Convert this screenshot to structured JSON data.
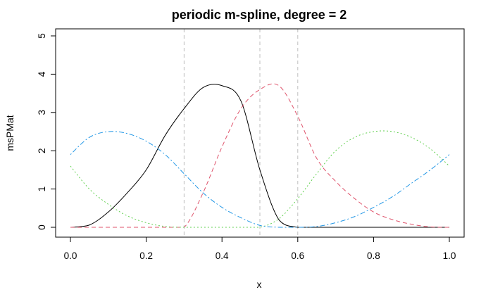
{
  "chart_data": {
    "type": "line",
    "title": "periodic m-spline, degree = 2",
    "xlabel": "x",
    "ylabel": "msPMat",
    "xlim": [
      0,
      1
    ],
    "ylim": [
      0,
      5
    ],
    "xticks": [
      "0.0",
      "0.2",
      "0.4",
      "0.6",
      "0.8",
      "1.0"
    ],
    "yticks": [
      "0",
      "1",
      "2",
      "3",
      "4",
      "5"
    ],
    "knots": [
      0.3,
      0.5,
      0.6
    ],
    "grid": false,
    "legend": "none",
    "x": [
      0,
      0.05,
      0.1,
      0.15,
      0.2,
      0.25,
      0.3,
      0.35,
      0.4,
      0.45,
      0.5,
      0.55,
      0.6,
      0.65,
      0.7,
      0.75,
      0.8,
      0.85,
      0.9,
      0.95,
      1.0
    ],
    "series": [
      {
        "color": "#000000",
        "dash": "solid",
        "values": [
          0,
          0.06,
          0.4,
          0.9,
          1.5,
          2.4,
          3.1,
          3.65,
          3.7,
          3.3,
          1.5,
          0.2,
          0,
          0,
          0,
          0,
          0,
          0,
          0,
          0,
          0
        ]
      },
      {
        "color": "#DF536B",
        "dash": "dashed",
        "values": [
          0,
          0,
          0,
          0,
          0,
          0,
          0,
          0.9,
          2.1,
          3.1,
          3.6,
          3.7,
          2.9,
          1.8,
          1.2,
          0.75,
          0.4,
          0.2,
          0.08,
          0.01,
          0
        ]
      },
      {
        "color": "#61D04F",
        "dash": "dotted",
        "values": [
          1.6,
          1.0,
          0.6,
          0.3,
          0.12,
          0.02,
          0,
          0,
          0,
          0,
          0,
          0.22,
          0.75,
          1.4,
          2.0,
          2.35,
          2.5,
          2.5,
          2.35,
          2.05,
          1.6
        ]
      },
      {
        "color": "#2297E6",
        "dash": "dotdash",
        "values": [
          1.9,
          2.35,
          2.5,
          2.45,
          2.25,
          1.9,
          1.4,
          0.9,
          0.52,
          0.25,
          0.05,
          0,
          0,
          0.02,
          0.12,
          0.28,
          0.52,
          0.8,
          1.15,
          1.5,
          1.9
        ]
      }
    ]
  }
}
